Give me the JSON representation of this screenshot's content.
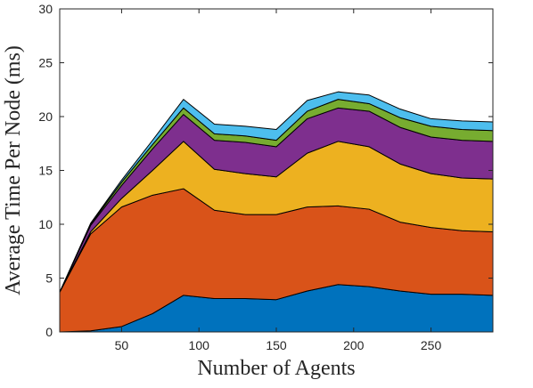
{
  "chart_data": {
    "type": "area",
    "stacked": true,
    "title": "",
    "xlabel": "Number of Agents",
    "ylabel": "Average Time Per Node (ms)",
    "xlim": [
      10,
      290
    ],
    "ylim": [
      0,
      30
    ],
    "xticks": [
      50,
      100,
      150,
      200,
      250
    ],
    "yticks": [
      0,
      5,
      10,
      15,
      20,
      25,
      30
    ],
    "grid": false,
    "legend": "none",
    "x": [
      10,
      30,
      50,
      70,
      90,
      110,
      130,
      150,
      170,
      190,
      210,
      230,
      250,
      270,
      290
    ],
    "series": [
      {
        "color": "#0072BD",
        "values": [
          0.0,
          0.1,
          0.5,
          1.7,
          3.4,
          3.1,
          3.1,
          3.0,
          3.8,
          4.4,
          4.2,
          3.8,
          3.5,
          3.5,
          3.4
        ]
      },
      {
        "color": "#D95319",
        "values": [
          3.7,
          9.0,
          11.1,
          11.0,
          9.9,
          8.2,
          7.8,
          7.9,
          7.8,
          7.3,
          7.2,
          6.4,
          6.2,
          5.9,
          5.9
        ]
      },
      {
        "color": "#EDB120",
        "values": [
          0.0,
          0.2,
          0.8,
          2.3,
          4.4,
          3.8,
          3.8,
          3.5,
          5.0,
          6.0,
          5.8,
          5.4,
          5.0,
          4.9,
          4.9
        ]
      },
      {
        "color": "#7E2F8E",
        "values": [
          0.0,
          0.6,
          1.2,
          2.0,
          2.5,
          2.7,
          2.9,
          2.8,
          3.2,
          3.1,
          3.3,
          3.4,
          3.4,
          3.5,
          3.5
        ]
      },
      {
        "color": "#77AC30",
        "values": [
          0.0,
          0.1,
          0.3,
          0.4,
          0.6,
          0.6,
          0.6,
          0.6,
          0.7,
          0.8,
          0.7,
          0.9,
          1.0,
          1.0,
          1.0
        ]
      },
      {
        "color": "#4DBEEE",
        "values": [
          0.0,
          0.1,
          0.2,
          0.4,
          0.8,
          0.9,
          0.9,
          1.0,
          1.0,
          0.7,
          0.8,
          0.8,
          0.7,
          0.8,
          0.8
        ]
      }
    ]
  }
}
